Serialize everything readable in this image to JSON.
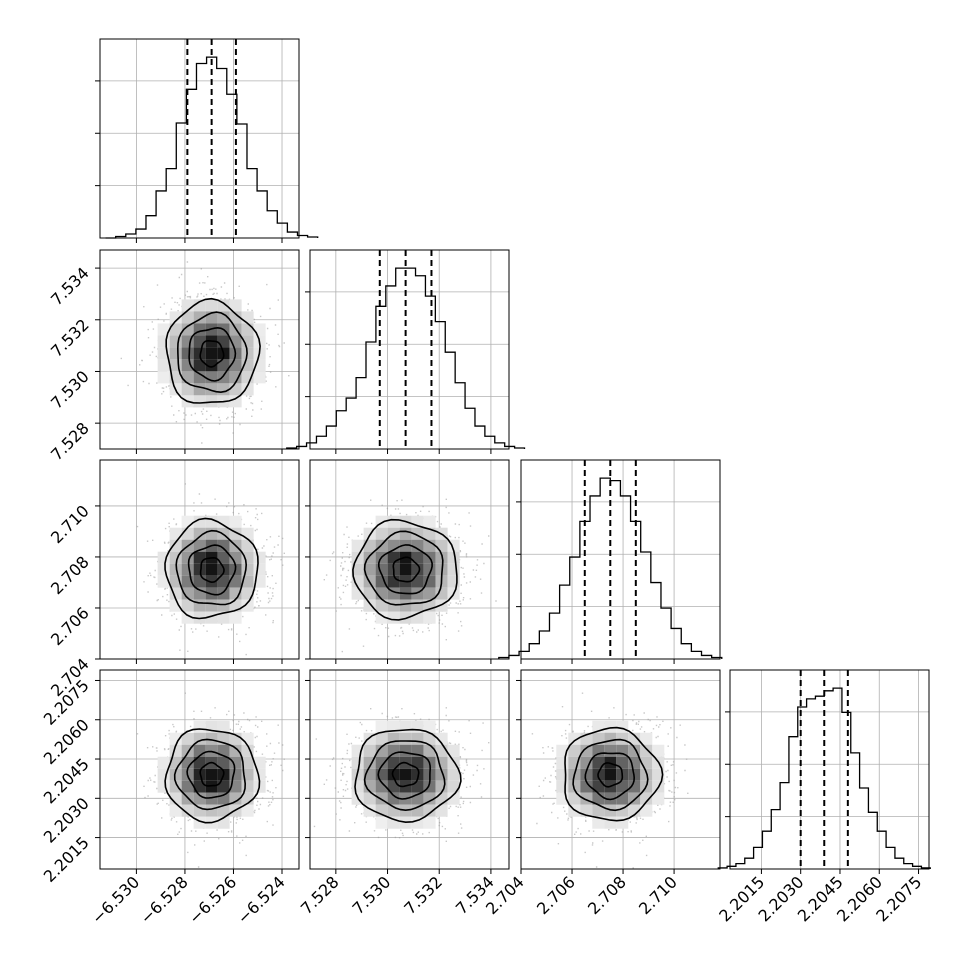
{
  "chart_data": {
    "type": "corner",
    "parameters": [
      {
        "index": 0,
        "xlim": [
          -6.5315,
          -6.5233
        ],
        "ticks": [
          -6.53,
          -6.528,
          -6.526,
          -6.524
        ],
        "tick_labels": [
          "−6.530",
          "−6.528",
          "−6.526",
          "−6.524"
        ],
        "quantiles": [
          -6.5279,
          -6.5269,
          -6.5259
        ],
        "mean": -6.5269,
        "sd": 0.00095
      },
      {
        "index": 1,
        "xlim": [
          7.527,
          7.5347
        ],
        "ticks": [
          7.528,
          7.53,
          7.532,
          7.534
        ],
        "tick_labels": [
          "7.528",
          "7.530",
          "7.532",
          "7.534"
        ],
        "quantiles": [
          7.5297,
          7.5307,
          7.5317
        ],
        "mean": 7.5307,
        "sd": 0.001
      },
      {
        "index": 2,
        "xlim": [
          2.704,
          2.7118
        ],
        "ticks": [
          2.704,
          2.706,
          2.708,
          2.71
        ],
        "tick_labels": [
          "2.704",
          "2.706",
          "2.708",
          "2.710"
        ],
        "quantiles": [
          2.7065,
          2.7075,
          2.7085
        ],
        "mean": 2.7075,
        "sd": 0.00095
      },
      {
        "index": 3,
        "xlim": [
          2.2003,
          2.2079
        ],
        "ticks": [
          2.2015,
          2.203,
          2.2045,
          2.206,
          2.2075
        ],
        "tick_labels": [
          "2.2015",
          "2.2030",
          "2.2045",
          "2.2060",
          "2.2075"
        ],
        "quantiles": [
          2.203,
          2.2039,
          2.2048
        ],
        "mean": 2.2039,
        "sd": 0.00088
      }
    ],
    "histograms": [
      {
        "param": 0,
        "counts": [
          0,
          3,
          8,
          18,
          45,
          95,
          140,
          232,
          300,
          352,
          365,
          342,
          290,
          230,
          140,
          95,
          55,
          30,
          12,
          5,
          2
        ]
      },
      {
        "param": 1,
        "counts": [
          2,
          5,
          12,
          25,
          45,
          75,
          100,
          140,
          210,
          280,
          320,
          355,
          355,
          340,
          300,
          250,
          190,
          130,
          80,
          45,
          25,
          12,
          5,
          2
        ]
      },
      {
        "param": 2,
        "counts": [
          3,
          7,
          15,
          30,
          55,
          90,
          145,
          200,
          270,
          320,
          355,
          350,
          320,
          270,
          210,
          150,
          100,
          60,
          30,
          15,
          7,
          3
        ]
      },
      {
        "param": 3,
        "counts": [
          2,
          5,
          10,
          20,
          40,
          70,
          110,
          160,
          245,
          300,
          315,
          320,
          330,
          335,
          290,
          215,
          150,
          105,
          70,
          40,
          20,
          10,
          5,
          2
        ]
      }
    ],
    "scatter_panels": [
      {
        "x_param": 0,
        "y_param": 1
      },
      {
        "x_param": 0,
        "y_param": 2
      },
      {
        "x_param": 1,
        "y_param": 2
      },
      {
        "x_param": 0,
        "y_param": 3
      },
      {
        "x_param": 1,
        "y_param": 3
      },
      {
        "x_param": 2,
        "y_param": 3
      }
    ],
    "contour_levels_sigma": [
      0.5,
      1.0,
      1.5,
      2.0
    ],
    "grid": true,
    "colors": {
      "points": "#9a9a9a",
      "contour": "#000000",
      "fill_dark": "#000000",
      "hist_line": "#000000",
      "grid": "#b0b0b0"
    }
  }
}
